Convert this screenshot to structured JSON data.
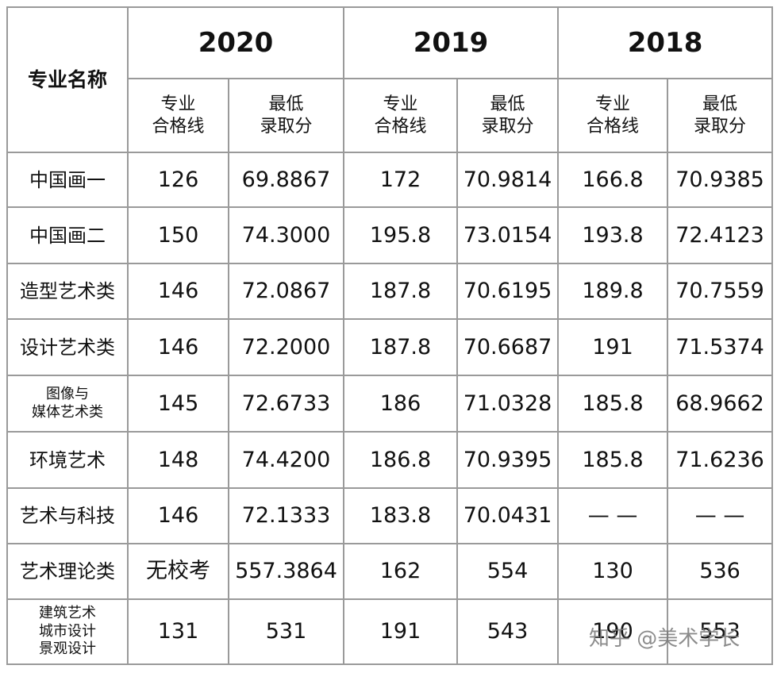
{
  "table": {
    "header": {
      "name": "专业名称",
      "years": [
        "2020",
        "2019",
        "2018"
      ],
      "subheaders": [
        [
          "专业",
          "合格线"
        ],
        [
          "最低",
          "录取分"
        ]
      ]
    },
    "rows": [
      {
        "label": [
          "中国画一"
        ],
        "cells": [
          "126",
          "69.8867",
          "172",
          "70.9814",
          "166.8",
          "70.9385"
        ]
      },
      {
        "label": [
          "中国画二"
        ],
        "cells": [
          "150",
          "74.3000",
          "195.8",
          "73.0154",
          "193.8",
          "72.4123"
        ]
      },
      {
        "label": [
          "造型艺术类"
        ],
        "cells": [
          "146",
          "72.0867",
          "187.8",
          "70.6195",
          "189.8",
          "70.7559"
        ]
      },
      {
        "label": [
          "设计艺术类"
        ],
        "cells": [
          "146",
          "72.2000",
          "187.8",
          "70.6687",
          "191",
          "71.5374"
        ]
      },
      {
        "label": [
          "图像与",
          "媒体艺术类"
        ],
        "cells": [
          "145",
          "72.6733",
          "186",
          "71.0328",
          "185.8",
          "68.9662"
        ]
      },
      {
        "label": [
          "环境艺术"
        ],
        "cells": [
          "148",
          "74.4200",
          "186.8",
          "70.9395",
          "185.8",
          "71.6236"
        ]
      },
      {
        "label": [
          "艺术与科技"
        ],
        "cells": [
          "146",
          "72.1333",
          "183.8",
          "70.0431",
          "— —",
          "— —"
        ]
      },
      {
        "label": [
          "艺术理论类"
        ],
        "cells": [
          "无校考",
          "557.3864",
          "162",
          "554",
          "130",
          "536"
        ]
      },
      {
        "label": [
          "建筑艺术",
          "城市设计",
          "景观设计"
        ],
        "cells": [
          "131",
          "531",
          "191",
          "543",
          "190",
          "553"
        ]
      }
    ]
  },
  "watermark": "知乎 @美术学长"
}
